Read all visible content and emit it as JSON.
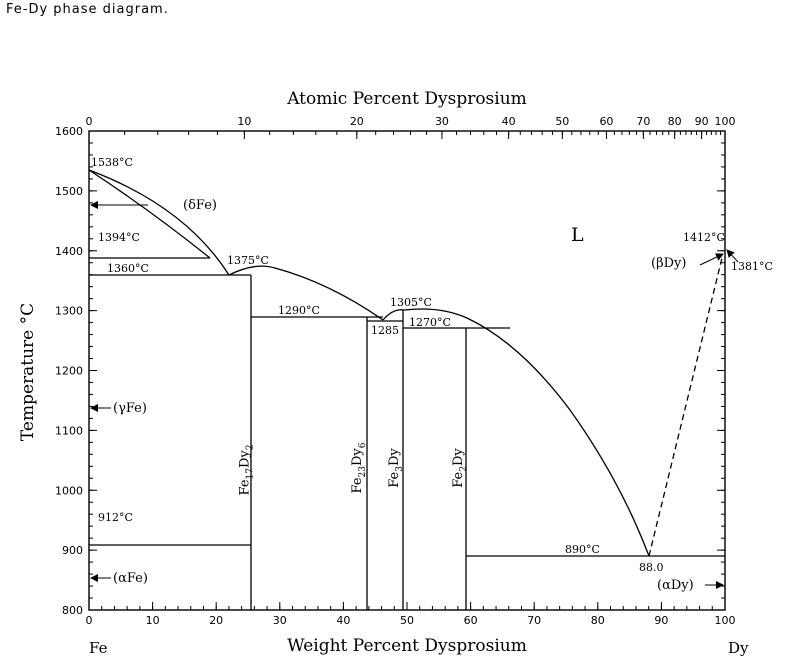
{
  "page_title": "Fe-Dy phase diagram.",
  "colors": {
    "line": "#000000",
    "background": "#ffffff"
  },
  "chart_data": {
    "type": "phase-diagram",
    "top_axis_title": "Atomic Percent Dysprosium",
    "bottom_axis_title": "Weight Percent Dysprosium",
    "y_axis_title": "Temperature °C",
    "y_range": [
      800,
      1600
    ],
    "x_range": [
      0,
      100
    ],
    "y_ticks": [
      "800",
      "900",
      "1000",
      "1100",
      "1200",
      "1300",
      "1400",
      "1500",
      "1600"
    ],
    "bottom_ticks": [
      "0",
      "10",
      "20",
      "30",
      "40",
      "50",
      "60",
      "70",
      "80",
      "90",
      "100"
    ],
    "top_ticks": [
      {
        "at": 0,
        "label": "0"
      },
      {
        "at": 10,
        "label": "10"
      },
      {
        "at": 20,
        "label": "20"
      },
      {
        "at": 30,
        "label": "30"
      },
      {
        "at": 40,
        "label": "40"
      },
      {
        "at": 50,
        "label": "50"
      },
      {
        "at": 60,
        "label": "60"
      },
      {
        "at": 70,
        "label": "70"
      },
      {
        "at": 80,
        "label": "80"
      },
      {
        "at": 90,
        "label": "90"
      },
      {
        "at": 100,
        "label": "100"
      }
    ],
    "left_element": "Fe",
    "right_element": "Dy",
    "phases": {
      "liquid": "L",
      "delta_fe": "(δFe)",
      "gamma_fe": "(γFe)",
      "alpha_fe": "(αFe)",
      "beta_dy": "(βDy)",
      "alpha_dy": "(αDy)"
    },
    "compounds": [
      {
        "name": "Fe",
        "sub1": "17",
        "mid": "Dy",
        "sub2": "2",
        "wt": 25.7
      },
      {
        "name": "Fe",
        "sub1": "23",
        "mid": "Dy",
        "sub2": "6",
        "wt": 43.4
      },
      {
        "name": "Fe",
        "sub1": "3",
        "mid": "Dy",
        "sub2": "",
        "wt": 49.2
      },
      {
        "name": "Fe",
        "sub1": "2",
        "mid": "Dy",
        "sub2": "",
        "wt": 59.3
      }
    ],
    "temperature_labels": [
      {
        "text": "1538°C",
        "wt": 0,
        "t": 1538
      },
      {
        "text": "1394°C",
        "wt": 0,
        "t": 1394
      },
      {
        "text": "1360°C",
        "wt": 0,
        "t": 1360
      },
      {
        "text": "1375°C",
        "wt": 26.5,
        "t": 1375
      },
      {
        "text": "1290°C",
        "wt": 27,
        "t": 1290
      },
      {
        "text": "1305°C",
        "wt": 47,
        "t": 1305
      },
      {
        "text": "1285",
        "wt": 44,
        "t": 1285
      },
      {
        "text": "1270°C",
        "wt": 50,
        "t": 1270
      },
      {
        "text": "1412°C",
        "wt": 100,
        "t": 1412
      },
      {
        "text": "1381°C",
        "wt": 100,
        "t": 1381
      },
      {
        "text": "912°C",
        "wt": 0,
        "t": 912
      },
      {
        "text": "890°C",
        "wt": 75,
        "t": 890
      },
      {
        "text": "88.0",
        "wt": 88,
        "t": 890
      }
    ]
  }
}
